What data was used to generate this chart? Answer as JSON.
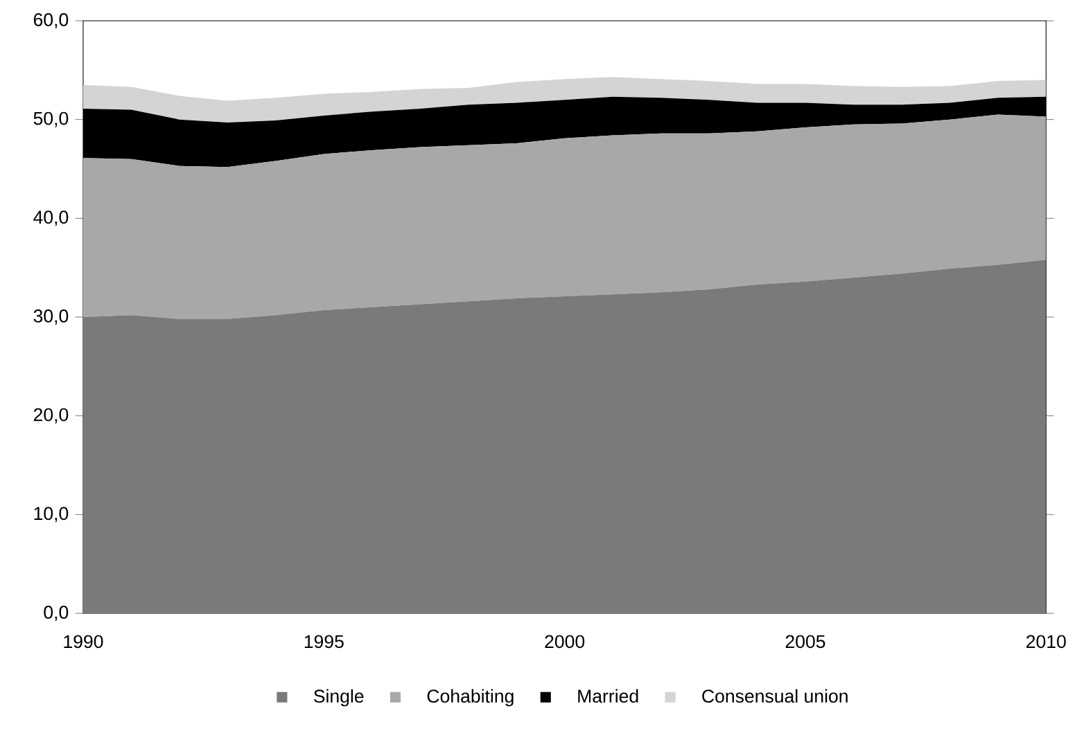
{
  "chart_data": {
    "type": "area",
    "stacked": true,
    "x": [
      1990,
      1991,
      1992,
      1993,
      1994,
      1995,
      1996,
      1997,
      1998,
      1999,
      2000,
      2001,
      2002,
      2003,
      2004,
      2005,
      2006,
      2007,
      2008,
      2009,
      2010
    ],
    "series": [
      {
        "name": "Single",
        "color": "#7a7a7a",
        "values": [
          30.0,
          30.2,
          29.8,
          29.8,
          30.2,
          30.7,
          31.0,
          31.3,
          31.6,
          31.9,
          32.1,
          32.3,
          32.5,
          32.8,
          33.3,
          33.6,
          34.0,
          34.4,
          34.9,
          35.3,
          35.8
        ]
      },
      {
        "name": "Cohabiting",
        "color": "#a8a8a8",
        "values": [
          16.1,
          15.8,
          15.5,
          15.4,
          15.6,
          15.8,
          15.9,
          15.9,
          15.8,
          15.7,
          16.0,
          16.1,
          16.1,
          15.8,
          15.5,
          15.6,
          15.5,
          15.2,
          15.1,
          15.2,
          14.5
        ]
      },
      {
        "name": "Married",
        "color": "#000000",
        "values": [
          5.0,
          5.0,
          4.7,
          4.5,
          4.1,
          3.9,
          3.9,
          3.9,
          4.1,
          4.1,
          3.9,
          3.9,
          3.6,
          3.4,
          2.9,
          2.5,
          2.0,
          1.9,
          1.7,
          1.7,
          2.0
        ]
      },
      {
        "name": "Consensual union",
        "color": "#d4d4d4",
        "values": [
          2.4,
          2.3,
          2.4,
          2.2,
          2.3,
          2.2,
          2.0,
          2.0,
          1.7,
          2.1,
          2.1,
          2.0,
          1.9,
          1.9,
          1.9,
          1.9,
          1.9,
          1.8,
          1.7,
          1.7,
          1.7
        ]
      }
    ],
    "xlim": [
      1990,
      2010
    ],
    "xticks": [
      1990,
      1995,
      2000,
      2005,
      2010
    ],
    "ylim": [
      0,
      60
    ],
    "yticks": [
      {
        "value": 0,
        "label": "0,0"
      },
      {
        "value": 10,
        "label": "10,0"
      },
      {
        "value": 20,
        "label": "20,0"
      },
      {
        "value": 30,
        "label": "30,0"
      },
      {
        "value": 40,
        "label": "40,0"
      },
      {
        "value": 50,
        "label": "50,0"
      },
      {
        "value": 60,
        "label": "60,0"
      }
    ],
    "grid": false,
    "legend": "bottom"
  }
}
